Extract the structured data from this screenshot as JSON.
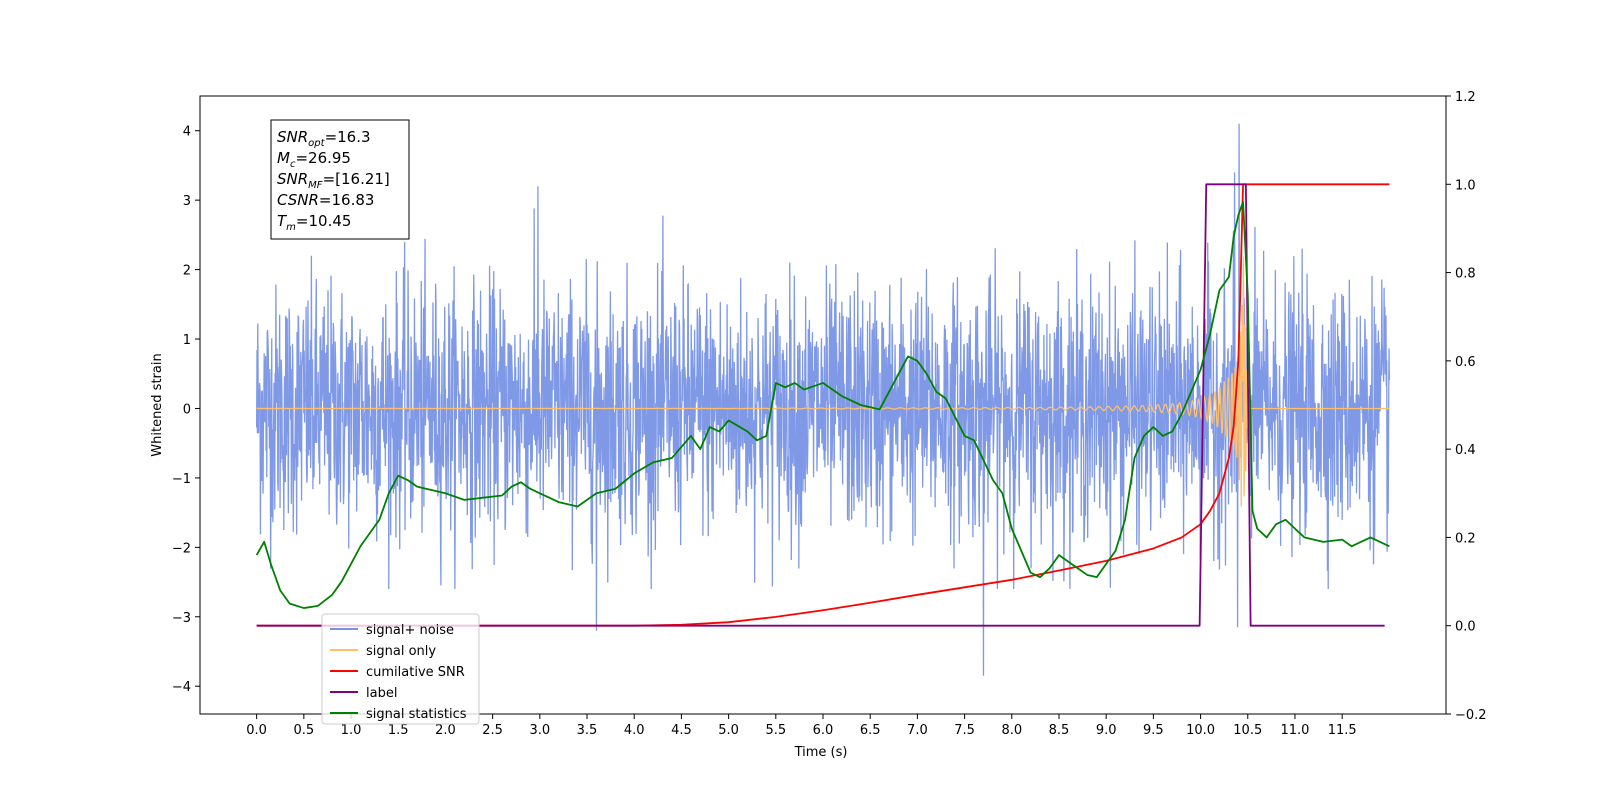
{
  "chart_data": {
    "type": "line",
    "xlabel": "Time (s)",
    "ylabel": "Whitened strain",
    "xlim": [
      -0.6,
      12.6
    ],
    "ylim": [
      -4.4,
      4.5
    ],
    "y2lim": [
      -0.2,
      1.2
    ],
    "x_ticks": [
      0.0,
      0.5,
      1.0,
      1.5,
      2.0,
      2.5,
      3.0,
      3.5,
      4.0,
      4.5,
      5.0,
      5.5,
      6.0,
      6.5,
      7.0,
      7.5,
      8.0,
      8.5,
      9.0,
      9.5,
      10.0,
      10.5,
      11.0,
      11.5
    ],
    "x_tick_labels": [
      "0.0",
      "0.5",
      "1.0",
      "1.5",
      "2.0",
      "2.5",
      "3.0",
      "3.5",
      "4.0",
      "4.5",
      "5.0",
      "5.5",
      "6.0",
      "6.5",
      "7.0",
      "7.5",
      "8.0",
      "8.5",
      "9.0",
      "9.5",
      "10.0",
      "10.5",
      "11.0",
      "11.5"
    ],
    "y_ticks": [
      -4,
      -3,
      -2,
      -1,
      0,
      1,
      2,
      3,
      4
    ],
    "y_tick_labels": [
      "−4",
      "−3",
      "−2",
      "−1",
      "0",
      "1",
      "2",
      "3",
      "4"
    ],
    "y2_ticks": [
      -0.2,
      0.0,
      0.2,
      0.4,
      0.6,
      0.8,
      1.0,
      1.2
    ],
    "y2_tick_labels": [
      "−0.2",
      "0.0",
      "0.2",
      "0.4",
      "0.6",
      "0.8",
      "1.0",
      "1.2"
    ],
    "grid": false,
    "legend_position": "lower-left",
    "annotation_box": {
      "position": "top-left",
      "lines": [
        {
          "sym": "SNR",
          "sub": "opt",
          "val": "=16.3"
        },
        {
          "sym": "M",
          "sub": "c",
          "val": "=26.95"
        },
        {
          "sym": "SNR",
          "sub": "MF",
          "val": "=[16.21]"
        },
        {
          "sym": "CSNR",
          "sub": "",
          "val": "=16.83"
        },
        {
          "sym": "T",
          "sub": "m",
          "val": "=10.45"
        }
      ]
    },
    "series": [
      {
        "name": "signal+ noise",
        "axis": "left",
        "color": "#7893e6",
        "style": "noise",
        "x_range": [
          0.0,
          12.0
        ],
        "typical_extent": [
          -1.6,
          1.6
        ],
        "spikes": [
          {
            "x": 2.98,
            "y": 3.2
          },
          {
            "x": 3.6,
            "y": -3.2
          },
          {
            "x": 7.7,
            "y": -3.85
          },
          {
            "x": 10.36,
            "y": 3.4
          },
          {
            "x": 10.39,
            "y": -3.15
          },
          {
            "x": 10.41,
            "y": 4.1
          }
        ]
      },
      {
        "name": "signal only",
        "axis": "left",
        "color": "#ffbf6b",
        "style": "chirp",
        "x_range": [
          0.0,
          12.0
        ],
        "merger_time": 10.45,
        "peak_amplitude": 3.0
      },
      {
        "name": "cumilative SNR",
        "axis": "right",
        "color": "#ff0000",
        "x": [
          0.0,
          4.0,
          4.5,
          5.0,
          5.5,
          6.0,
          6.5,
          7.0,
          7.5,
          8.0,
          8.5,
          9.0,
          9.5,
          9.8,
          10.0,
          10.1,
          10.2,
          10.3,
          10.35,
          10.4,
          10.42,
          10.45,
          12.0
        ],
        "y": [
          0.0,
          0.0,
          0.002,
          0.008,
          0.02,
          0.035,
          0.052,
          0.07,
          0.087,
          0.104,
          0.125,
          0.147,
          0.175,
          0.2,
          0.23,
          0.26,
          0.3,
          0.38,
          0.45,
          0.6,
          0.75,
          1.0,
          1.0
        ]
      },
      {
        "name": "label",
        "axis": "right",
        "color": "#800080",
        "x": [
          0.0,
          9.99,
          10.06,
          10.48,
          10.53,
          11.95
        ],
        "y": [
          0,
          0,
          1,
          1,
          0,
          0
        ]
      },
      {
        "name": "signal statistics",
        "axis": "right",
        "color": "#008000",
        "x": [
          0.0,
          0.08,
          0.15,
          0.25,
          0.35,
          0.5,
          0.65,
          0.8,
          0.9,
          1.0,
          1.1,
          1.2,
          1.3,
          1.4,
          1.5,
          1.6,
          1.7,
          1.8,
          2.0,
          2.2,
          2.4,
          2.6,
          2.7,
          2.8,
          2.9,
          3.0,
          3.1,
          3.2,
          3.4,
          3.6,
          3.8,
          4.0,
          4.2,
          4.4,
          4.5,
          4.6,
          4.7,
          4.8,
          4.9,
          5.0,
          5.2,
          5.3,
          5.4,
          5.5,
          5.6,
          5.7,
          5.8,
          6.0,
          6.2,
          6.4,
          6.6,
          6.8,
          6.9,
          7.0,
          7.1,
          7.2,
          7.3,
          7.5,
          7.6,
          7.8,
          7.9,
          8.0,
          8.2,
          8.3,
          8.4,
          8.5,
          8.7,
          8.8,
          8.9,
          9.0,
          9.1,
          9.2,
          9.3,
          9.4,
          9.5,
          9.6,
          9.7,
          9.8,
          9.9,
          10.0,
          10.1,
          10.2,
          10.3,
          10.35,
          10.4,
          10.45,
          10.5,
          10.55,
          10.6,
          10.7,
          10.8,
          10.9,
          11.0,
          11.1,
          11.3,
          11.5,
          11.6,
          11.7,
          11.8,
          12.0
        ],
        "y": [
          0.16,
          0.19,
          0.14,
          0.08,
          0.05,
          0.04,
          0.045,
          0.07,
          0.1,
          0.14,
          0.18,
          0.21,
          0.24,
          0.3,
          0.34,
          0.33,
          0.315,
          0.31,
          0.3,
          0.285,
          0.29,
          0.295,
          0.315,
          0.325,
          0.31,
          0.3,
          0.29,
          0.28,
          0.27,
          0.3,
          0.31,
          0.345,
          0.37,
          0.38,
          0.405,
          0.43,
          0.4,
          0.45,
          0.44,
          0.465,
          0.44,
          0.42,
          0.43,
          0.55,
          0.54,
          0.55,
          0.535,
          0.55,
          0.52,
          0.5,
          0.49,
          0.57,
          0.61,
          0.6,
          0.57,
          0.53,
          0.515,
          0.43,
          0.42,
          0.33,
          0.3,
          0.22,
          0.12,
          0.11,
          0.13,
          0.16,
          0.13,
          0.115,
          0.11,
          0.14,
          0.17,
          0.24,
          0.38,
          0.43,
          0.45,
          0.43,
          0.44,
          0.48,
          0.53,
          0.58,
          0.66,
          0.76,
          0.79,
          0.88,
          0.93,
          0.96,
          0.75,
          0.26,
          0.22,
          0.2,
          0.23,
          0.24,
          0.22,
          0.2,
          0.19,
          0.195,
          0.18,
          0.19,
          0.2,
          0.18
        ]
      }
    ]
  }
}
